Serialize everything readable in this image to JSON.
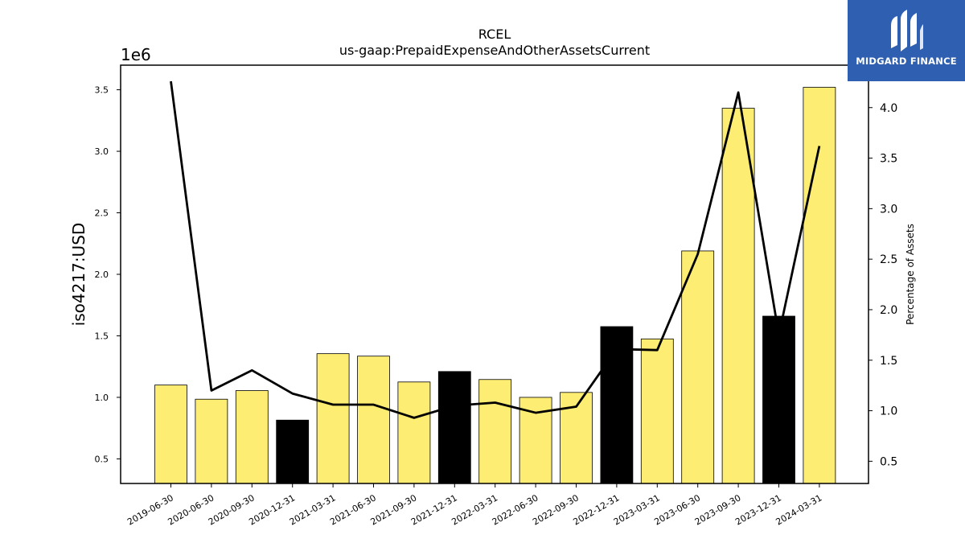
{
  "logo": {
    "text": "MIDGARD FINANCE",
    "icon": "midgard-logo-icon",
    "bg_color": "#2f5fb0"
  },
  "chart_data": {
    "type": "bar",
    "title": "RCEL",
    "subtitle": "us-gaap:PrepaidExpenseAndOtherAssetsCurrent",
    "ylabel": "iso4217:USD",
    "y_offset_label": "1e6",
    "y2label": "Percentage of Assets",
    "categories": [
      "2019-06-30",
      "2020-06-30",
      "2020-09-30",
      "2020-12-31",
      "2021-03-31",
      "2021-06-30",
      "2021-09-30",
      "2021-12-31",
      "2022-03-31",
      "2022-06-30",
      "2022-09-30",
      "2022-12-31",
      "2023-03-31",
      "2023-06-30",
      "2023-09-30",
      "2023-12-31",
      "2024-03-31"
    ],
    "series": [
      {
        "type": "bar",
        "values": [
          1.1,
          0.985,
          1.055,
          0.815,
          1.355,
          1.335,
          1.125,
          1.21,
          1.145,
          1.0,
          1.04,
          1.575,
          1.475,
          2.19,
          3.35,
          1.66,
          3.52
        ],
        "highlight": [
          false,
          false,
          false,
          true,
          false,
          false,
          false,
          true,
          false,
          false,
          false,
          true,
          false,
          false,
          false,
          true,
          false
        ]
      },
      {
        "type": "line",
        "axis": "right",
        "values": [
          4.26,
          1.2,
          1.4,
          1.17,
          1.06,
          1.06,
          0.93,
          1.05,
          1.08,
          0.98,
          1.04,
          1.61,
          1.6,
          2.55,
          4.15,
          1.75,
          3.62
        ]
      }
    ],
    "ylim": [
      0.3,
      3.7
    ],
    "y_ticks": [
      "0.5",
      "1.0",
      "1.5",
      "2.0",
      "2.5",
      "3.0",
      "3.5"
    ],
    "y2lim": [
      0.28,
      4.42
    ],
    "y2_ticks": [
      "0.5",
      "1.0",
      "1.5",
      "2.0",
      "2.5",
      "3.0",
      "3.5",
      "4.0"
    ],
    "colors": {
      "bar": "#fded72",
      "bar_highlight": "#000000",
      "line": "#000000"
    },
    "grid": false,
    "legend": "none"
  }
}
